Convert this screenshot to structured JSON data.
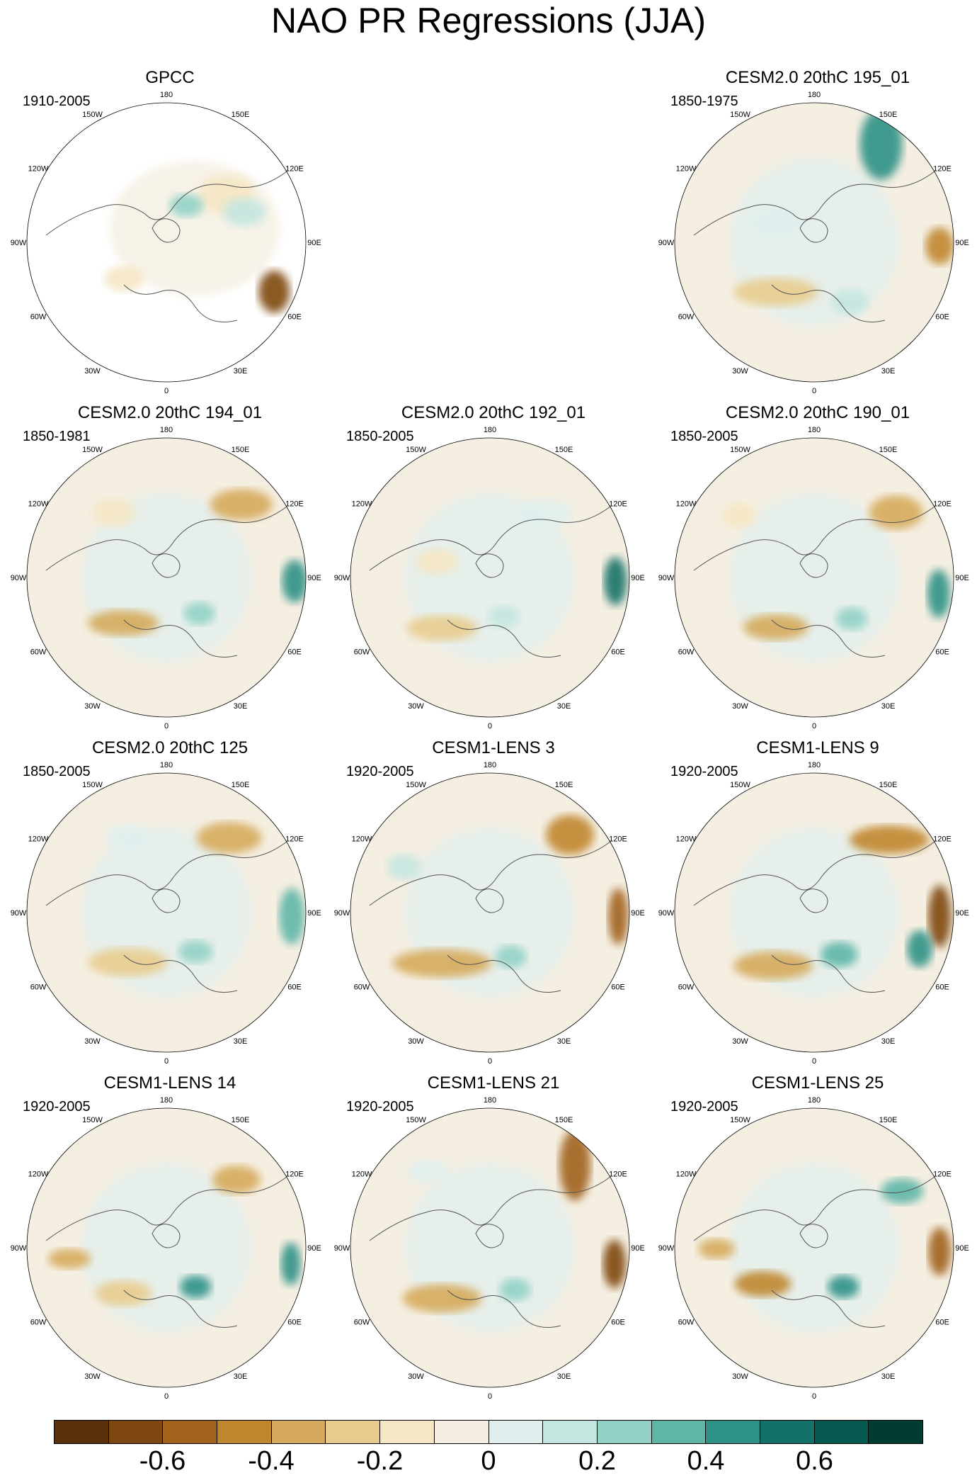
{
  "title": "NAO PR Regressions (JJA)",
  "longitude_labels": [
    "180",
    "150E",
    "120E",
    "90E",
    "60E",
    "30E",
    "0",
    "30W",
    "60W",
    "90W",
    "120W",
    "150W"
  ],
  "panels": [
    {
      "title": "GPCC",
      "period": "1910-2005",
      "row": 0,
      "col": 0,
      "observational": true
    },
    {
      "title": "CESM2.0 20thC 195_01",
      "period": "1850-1975",
      "row": 0,
      "col": 2,
      "observational": false
    },
    {
      "title": "CESM2.0 20thC 194_01",
      "period": "1850-1981",
      "row": 1,
      "col": 0,
      "observational": false
    },
    {
      "title": "CESM2.0 20thC 192_01",
      "period": "1850-2005",
      "row": 1,
      "col": 1,
      "observational": false
    },
    {
      "title": "CESM2.0 20thC 190_01",
      "period": "1850-2005",
      "row": 1,
      "col": 2,
      "observational": false
    },
    {
      "title": "CESM2.0 20thC 125",
      "period": "1850-2005",
      "row": 2,
      "col": 0,
      "observational": false
    },
    {
      "title": "CESM1-LENS 3",
      "period": "1920-2005",
      "row": 2,
      "col": 1,
      "observational": false
    },
    {
      "title": "CESM1-LENS 9",
      "period": "1920-2005",
      "row": 2,
      "col": 2,
      "observational": false
    },
    {
      "title": "CESM1-LENS 14",
      "period": "1920-2005",
      "row": 3,
      "col": 0,
      "observational": false
    },
    {
      "title": "CESM1-LENS 21",
      "period": "1920-2005",
      "row": 3,
      "col": 1,
      "observational": false
    },
    {
      "title": "CESM1-LENS 25",
      "period": "1920-2005",
      "row": 3,
      "col": 2,
      "observational": false
    }
  ],
  "colorbar": {
    "colors": [
      "#5a300a",
      "#7e4610",
      "#a0621c",
      "#c0862e",
      "#d6aa5c",
      "#e8cc8e",
      "#f5e6c4",
      "#f5efe2",
      "#e0efee",
      "#c4e6e0",
      "#92d2c6",
      "#5eb6a8",
      "#2e9186",
      "#137268",
      "#065a50",
      "#003c32"
    ],
    "tick_values": [
      -0.6,
      -0.4,
      -0.2,
      0,
      0.2,
      0.4,
      0.6
    ],
    "labels": [
      "-0.6",
      "-0.4",
      "-0.2",
      "0",
      "0.2",
      "0.4",
      "0.6"
    ],
    "min": -0.8,
    "max": 0.8
  }
}
